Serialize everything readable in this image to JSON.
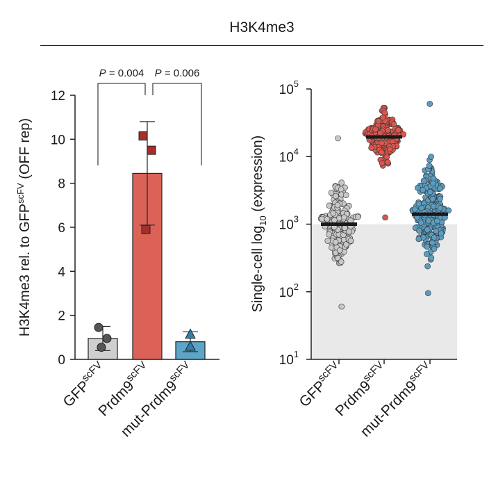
{
  "figure": {
    "header": "H3K4me3"
  },
  "chart_data": [
    {
      "type": "bar",
      "ylabel": "H3K4me3 rel. to GFP",
      "ylabel_sup": "scFV",
      "ylabel_suffix": " (OFF rep)",
      "ylim": [
        0,
        12
      ],
      "yticks": [
        0,
        2,
        4,
        6,
        8,
        10,
        12
      ],
      "categories": [
        {
          "base": "GFP",
          "sup": "scFV"
        },
        {
          "base": "Prdm9",
          "sup": "scFV"
        },
        {
          "base": "mut-Prdm9",
          "sup": "scFV"
        }
      ],
      "values": [
        0.95,
        8.45,
        0.8
      ],
      "errors": [
        0.55,
        2.35,
        0.45
      ],
      "colors": [
        "#cfcfcf",
        "#dc6258",
        "#5da4c7"
      ],
      "marker_shapes": [
        "circle",
        "square",
        "triangle"
      ],
      "marker_colors": [
        "#555555",
        "#a4302c",
        "#2f7fb3"
      ],
      "replicates": [
        [
          1.45,
          0.95,
          0.55
        ],
        [
          10.15,
          9.5,
          5.9
        ],
        [
          1.15,
          0.6
        ]
      ],
      "significance": [
        {
          "from": 0,
          "to": 1,
          "text": "P = 0.004"
        },
        {
          "from": 1,
          "to": 2,
          "text": "P = 0.006"
        }
      ]
    },
    {
      "type": "scatter",
      "yscale": "log",
      "ylabel": "Single-cell log",
      "ylabel_sub": "10",
      "ylabel_suffix": " (expression)",
      "ylim": [
        10,
        100000
      ],
      "yticks": [
        {
          "base": "10",
          "exp": "1"
        },
        {
          "base": "10",
          "exp": "2"
        },
        {
          "base": "10",
          "exp": "3"
        },
        {
          "base": "10",
          "exp": "4"
        },
        {
          "base": "10",
          "exp": "5"
        }
      ],
      "background_threshold": 1000,
      "categories": [
        {
          "base": "GFP",
          "sup": "scFV"
        },
        {
          "base": "Prdm9",
          "sup": "scFV"
        },
        {
          "base": "mut-Prdm9",
          "sup": "scFV"
        }
      ],
      "medians": [
        1000,
        19500,
        1400
      ],
      "colors": [
        "#c8c8c8",
        "#d9574f",
        "#5b9dc0"
      ],
      "series": [
        {
          "name": "GFPscFV",
          "n": 210,
          "log_min": 1.78,
          "log_max": 4.27,
          "log_median": 3.0,
          "spread": 0.28
        },
        {
          "name": "Prdm9scFV",
          "n": 240,
          "log_min": 3.1,
          "log_max": 4.72,
          "log_median": 4.29,
          "spread": 0.16
        },
        {
          "name": "mut-Prdm9scFV",
          "n": 300,
          "log_min": 1.98,
          "log_max": 4.78,
          "log_median": 3.15,
          "spread": 0.32
        }
      ]
    }
  ]
}
